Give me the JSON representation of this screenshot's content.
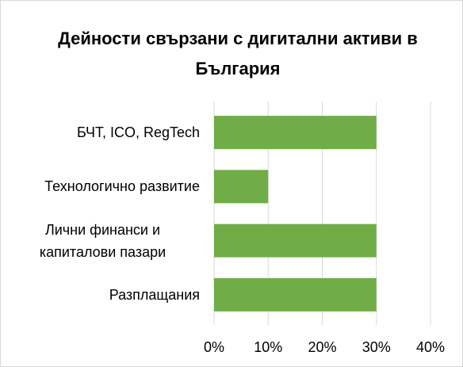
{
  "chart_data": {
    "type": "bar",
    "orientation": "horizontal",
    "title": "Дейности свързани с дигитални активи в България",
    "categories": [
      "БЧТ, ICO, RegTech",
      "Технологично развитие",
      "Лични финанси и капиталови пазари",
      "Разплащания"
    ],
    "values": [
      30,
      10,
      30,
      30
    ],
    "color": "#70ad47",
    "xlim": [
      0,
      40
    ],
    "xticks": [
      {
        "value": 0,
        "label": "0%"
      },
      {
        "value": 10,
        "label": "10%"
      },
      {
        "value": 20,
        "label": "20%"
      },
      {
        "value": 30,
        "label": "30%"
      },
      {
        "value": 40,
        "label": "40%"
      }
    ],
    "grid": true
  }
}
